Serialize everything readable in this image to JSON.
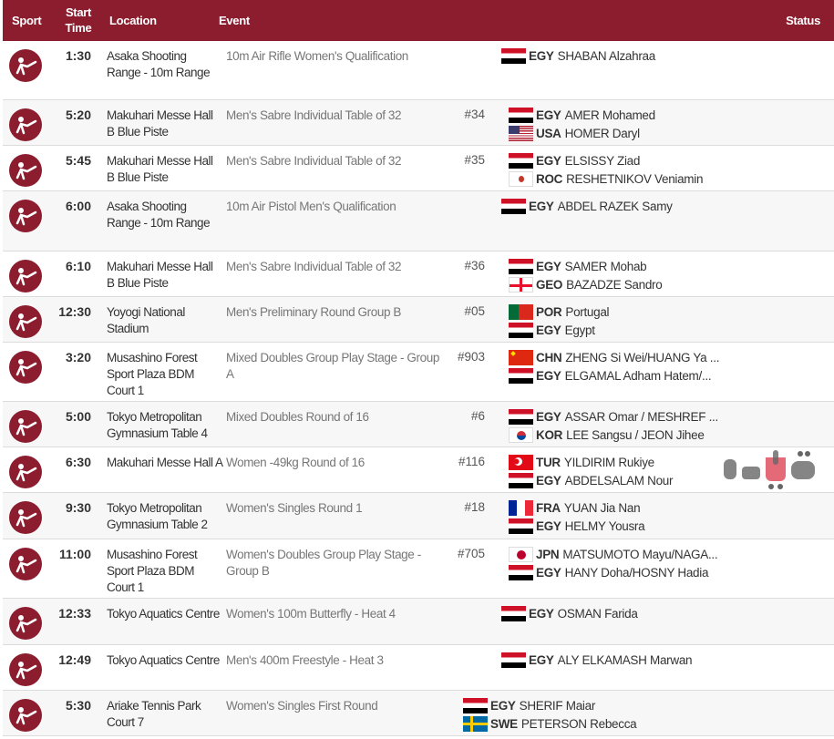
{
  "header": {
    "sport": "Sport",
    "start_time": "Start Time",
    "location": "Location",
    "event": "Event",
    "status": "Status"
  },
  "colors": {
    "brand": "#8c1d2e"
  },
  "watermark": "فيتو",
  "rows": [
    {
      "sport_icon": "shooting-icon",
      "time": "1:30",
      "location": "Asaka Shooting Range - 10m Range",
      "event": "10m Air Rifle Women's Qualification",
      "number": "",
      "competitors": [
        {
          "noc": "EGY",
          "name": "SHABAN Alzahraa"
        }
      ]
    },
    {
      "sport_icon": "fencing-icon",
      "time": "5:20",
      "location": "Makuhari Messe Hall B Blue Piste",
      "event": "Men's Sabre Individual Table of 32",
      "number": "#34",
      "competitors": [
        {
          "noc": "EGY",
          "name": "AMER Mohamed"
        },
        {
          "noc": "USA",
          "name": "HOMER Daryl"
        }
      ]
    },
    {
      "sport_icon": "fencing-icon",
      "time": "5:45",
      "location": "Makuhari Messe Hall B Blue Piste",
      "event": "Men's Sabre Individual Table of 32",
      "number": "#35",
      "competitors": [
        {
          "noc": "EGY",
          "name": "ELSISSY Ziad"
        },
        {
          "noc": "ROC",
          "name": "RESHETNIKOV Veniamin"
        }
      ]
    },
    {
      "sport_icon": "shooting-icon",
      "time": "6:00",
      "location": "Asaka Shooting Range - 10m Range",
      "event": "10m Air Pistol Men's Qualification",
      "number": "",
      "competitors": [
        {
          "noc": "EGY",
          "name": "ABDEL RAZEK Samy"
        }
      ]
    },
    {
      "sport_icon": "fencing-icon",
      "time": "6:10",
      "location": "Makuhari Messe Hall B Blue Piste",
      "event": "Men's Sabre Individual Table of 32",
      "number": "#36",
      "competitors": [
        {
          "noc": "EGY",
          "name": "SAMER Mohab"
        },
        {
          "noc": "GEO",
          "name": "BAZADZE Sandro"
        }
      ]
    },
    {
      "sport_icon": "handball-icon",
      "time": "12:30",
      "location": "Yoyogi National Stadium",
      "event": "Men's Preliminary Round Group B",
      "number": "#05",
      "competitors": [
        {
          "noc": "POR",
          "name": "Portugal"
        },
        {
          "noc": "EGY",
          "name": "Egypt"
        }
      ]
    },
    {
      "sport_icon": "badminton-icon",
      "time": "3:20",
      "location": "Musashino Forest Sport Plaza BDM Court 1",
      "event": "Mixed Doubles Group Play Stage - Group A",
      "number": "#903",
      "competitors": [
        {
          "noc": "CHN",
          "name": "ZHENG Si Wei/HUANG Ya ..."
        },
        {
          "noc": "EGY",
          "name": "ELGAMAL Adham Hatem/..."
        }
      ]
    },
    {
      "sport_icon": "table-tennis-icon",
      "time": "5:00",
      "location": "Tokyo Metropolitan Gymnasium Table 4",
      "event": "Mixed Doubles Round of 16",
      "number": "#6",
      "competitors": [
        {
          "noc": "EGY",
          "name": "ASSAR Omar / MESHREF ..."
        },
        {
          "noc": "KOR",
          "name": "LEE Sangsu / JEON Jihee"
        }
      ]
    },
    {
      "sport_icon": "taekwondo-icon",
      "time": "6:30",
      "location": "Makuhari Messe Hall A",
      "event": "Women -49kg Round of 16",
      "number": "#116",
      "competitors": [
        {
          "noc": "TUR",
          "name": "YILDIRIM Rukiye"
        },
        {
          "noc": "EGY",
          "name": "ABDELSALAM Nour"
        }
      ]
    },
    {
      "sport_icon": "table-tennis-icon",
      "time": "9:30",
      "location": "Tokyo Metropolitan Gymnasium Table 2",
      "event": "Women's Singles Round 1",
      "number": "#18",
      "competitors": [
        {
          "noc": "FRA",
          "name": "YUAN Jia Nan"
        },
        {
          "noc": "EGY",
          "name": "HELMY Yousra"
        }
      ]
    },
    {
      "sport_icon": "badminton-icon",
      "time": "11:00",
      "location": "Musashino Forest Sport Plaza BDM Court 1",
      "event": "Women's Doubles Group Play Stage - Group B",
      "number": "#705",
      "competitors": [
        {
          "noc": "JPN",
          "name": "MATSUMOTO Mayu/NAGA..."
        },
        {
          "noc": "EGY",
          "name": "HANY Doha/HOSNY Hadia"
        }
      ]
    },
    {
      "sport_icon": "swimming-icon",
      "time": "12:33",
      "location": "Tokyo Aquatics Centre",
      "event": "Women's 100m Butterfly - Heat 4",
      "number": "",
      "competitors": [
        {
          "noc": "EGY",
          "name": "OSMAN Farida"
        }
      ]
    },
    {
      "sport_icon": "swimming-icon",
      "time": "12:49",
      "location": "Tokyo Aquatics Centre",
      "event": "Men's 400m Freestyle - Heat 3",
      "number": "",
      "competitors": [
        {
          "noc": "EGY",
          "name": "ALY ELKAMASH Marwan"
        }
      ]
    },
    {
      "sport_icon": "tennis-icon",
      "time": "5:30",
      "location": "Ariake Tennis Park Court 7",
      "event": "Women's Singles First Round",
      "number": "",
      "competitors": [
        {
          "noc": "EGY",
          "name": "SHERIF Maiar"
        },
        {
          "noc": "SWE",
          "name": "PETERSON Rebecca"
        }
      ]
    }
  ]
}
